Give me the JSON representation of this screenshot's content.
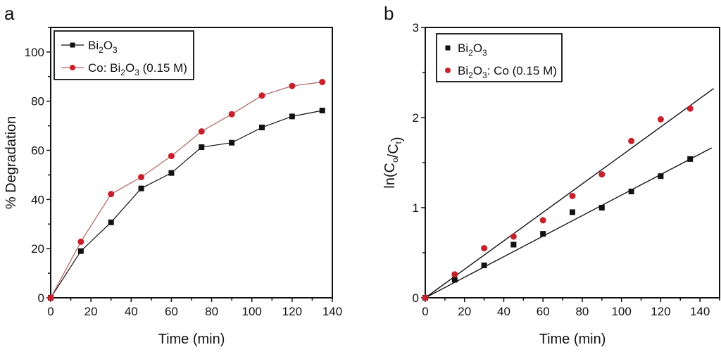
{
  "chart_data": [
    {
      "panel_label": "a",
      "type": "line",
      "title": "",
      "xlabel": "Time (min)",
      "ylabel": "% Degradation",
      "xlim": [
        0,
        140
      ],
      "ylim": [
        0,
        110
      ],
      "xticks": [
        0,
        20,
        40,
        60,
        80,
        100,
        120,
        140
      ],
      "yticks": [
        0,
        20,
        40,
        60,
        80,
        100
      ],
      "grid": false,
      "legend_position": "top-left",
      "x": [
        0,
        15,
        30,
        45,
        60,
        75,
        90,
        105,
        120,
        135
      ],
      "series": [
        {
          "name": "Bi2O3",
          "legend_parts": [
            [
              "Bi",
              ""
            ],
            [
              "2",
              "sub"
            ],
            [
              "O",
              ""
            ],
            [
              "3",
              "sub"
            ]
          ],
          "marker": "square",
          "color": "#111111",
          "line_color": "#111111",
          "values": [
            0,
            19.0,
            30.7,
            44.5,
            50.8,
            61.3,
            63.1,
            69.3,
            73.8,
            76.2
          ]
        },
        {
          "name": "Co: Bi2O3 (0.15 M)",
          "legend_parts": [
            [
              "Co: Bi",
              ""
            ],
            [
              "2",
              "sub"
            ],
            [
              "O",
              ""
            ],
            [
              "3",
              "sub"
            ],
            [
              " (0.15 M)",
              ""
            ]
          ],
          "marker": "circle",
          "color": "#c8202a",
          "line_color": "#b06060",
          "values": [
            0,
            22.8,
            42.2,
            49.1,
            57.7,
            67.7,
            74.7,
            82.3,
            86.2,
            87.8
          ]
        }
      ]
    },
    {
      "panel_label": "b",
      "type": "scatter",
      "title": "",
      "xlabel": "Time (min)",
      "ylabel": "ln(Co/Ct)",
      "xlim": [
        0,
        150
      ],
      "ylim": [
        0,
        3
      ],
      "xticks": [
        0,
        20,
        40,
        60,
        80,
        100,
        120,
        140
      ],
      "yticks": [
        0,
        1,
        2,
        3
      ],
      "grid": false,
      "legend_position": "top-left",
      "x": [
        0,
        15,
        30,
        45,
        60,
        75,
        90,
        105,
        120,
        135
      ],
      "series": [
        {
          "name": "Bi2O3",
          "legend_parts": [
            [
              "Bi",
              ""
            ],
            [
              "2",
              "sub"
            ],
            [
              "O",
              ""
            ],
            [
              "3",
              "sub"
            ]
          ],
          "marker": "square",
          "color": "#111111",
          "values": [
            0,
            0.2,
            0.36,
            0.59,
            0.71,
            0.95,
            1.0,
            1.18,
            1.35,
            1.54
          ],
          "fit": {
            "slope": 0.0114,
            "intercept": 0,
            "x_end": 146
          }
        },
        {
          "name": "Bi2O3: Co (0.15 M)",
          "legend_parts": [
            [
              "Bi",
              ""
            ],
            [
              "2",
              "sub"
            ],
            [
              "O",
              ""
            ],
            [
              "3",
              "sub"
            ],
            [
              ": Co (0.15 M)",
              ""
            ]
          ],
          "marker": "circle",
          "color": "#c8202a",
          "values": [
            0,
            0.26,
            0.55,
            0.68,
            0.86,
            1.13,
            1.37,
            1.74,
            1.98,
            2.1
          ],
          "fit": {
            "slope": 0.0158,
            "intercept": 0,
            "x_end": 147
          }
        }
      ]
    }
  ]
}
